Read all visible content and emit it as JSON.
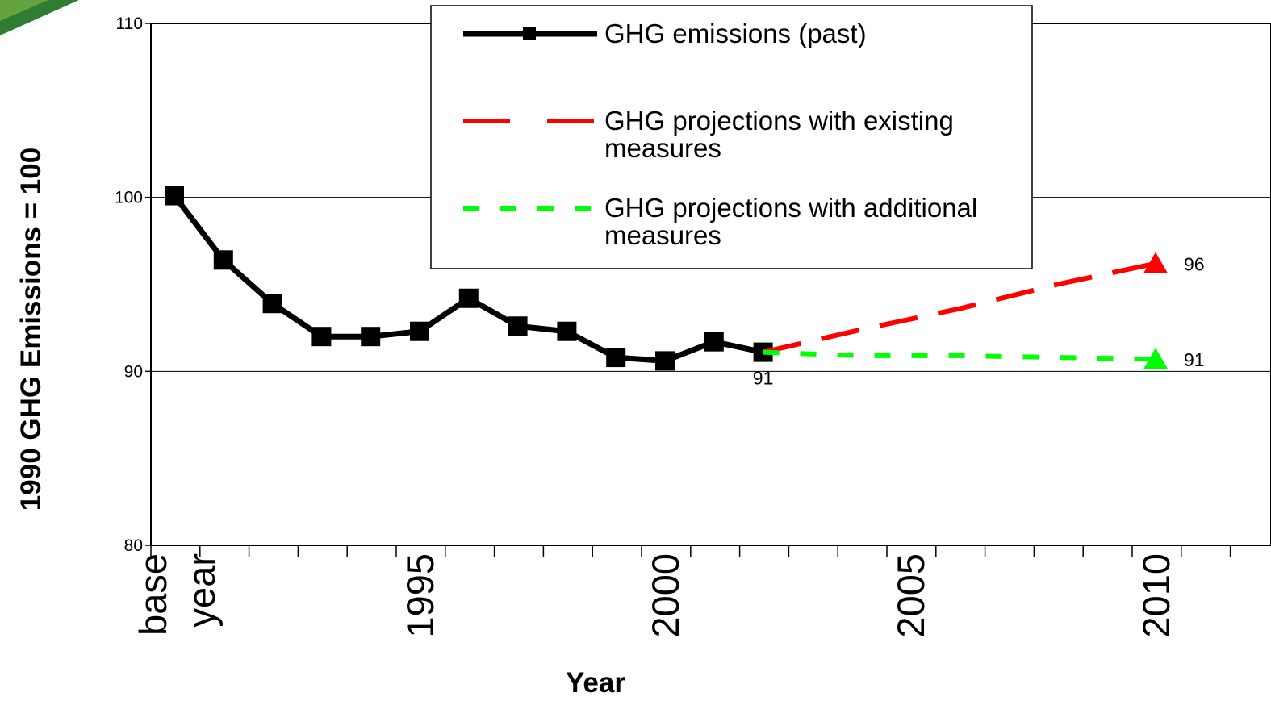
{
  "chart_data": {
    "type": "line",
    "title": "",
    "xlabel": "Year",
    "ylabel": "1990 GHG Emissions = 100",
    "ylim": [
      80,
      110
    ],
    "yticks": [
      80,
      90,
      100,
      110
    ],
    "xlim": [
      1989.5,
      2012
    ],
    "xtick_labels": [
      {
        "x": 1990,
        "lines": [
          "base",
          "year"
        ]
      },
      {
        "x": 1995,
        "lines": [
          "1995"
        ]
      },
      {
        "x": 2000,
        "lines": [
          "2000"
        ]
      },
      {
        "x": 2005,
        "lines": [
          "2005"
        ]
      },
      {
        "x": 2010,
        "lines": [
          "2010"
        ]
      }
    ],
    "grid": {
      "horizontal": true,
      "vertical": false
    },
    "legend_position": "top-center",
    "series": [
      {
        "name": "GHG emissions (past)",
        "style": "solid",
        "marker": "square",
        "color": "#000000",
        "x": [
          1990,
          1991,
          1992,
          1993,
          1994,
          1995,
          1996,
          1997,
          1998,
          1999,
          2000,
          2001,
          2002
        ],
        "y": [
          100.1,
          96.4,
          93.9,
          92.0,
          92.0,
          92.3,
          94.2,
          92.6,
          92.3,
          90.8,
          90.6,
          91.7,
          91.1
        ]
      },
      {
        "name": "GHG projections with existing measures",
        "style": "dashed",
        "marker": "triangle",
        "color": "#ff0000",
        "x": [
          2002,
          2004,
          2006,
          2008,
          2010
        ],
        "y": [
          91.1,
          92.4,
          93.6,
          95.0,
          96.2
        ]
      },
      {
        "name": "GHG projections with additional measures",
        "style": "dotted",
        "marker": "triangle",
        "color": "#00ff00",
        "x": [
          2002,
          2004,
          2006,
          2008,
          2010
        ],
        "y": [
          91.1,
          90.9,
          90.9,
          90.8,
          90.7
        ]
      }
    ],
    "annotations": [
      {
        "text": "91",
        "x": 2002,
        "y": 91.1,
        "anchor": "below"
      },
      {
        "text": "96",
        "x": 2010,
        "y": 96.2,
        "anchor": "right"
      },
      {
        "text": "91",
        "x": 2010,
        "y": 90.7,
        "anchor": "right"
      }
    ]
  }
}
